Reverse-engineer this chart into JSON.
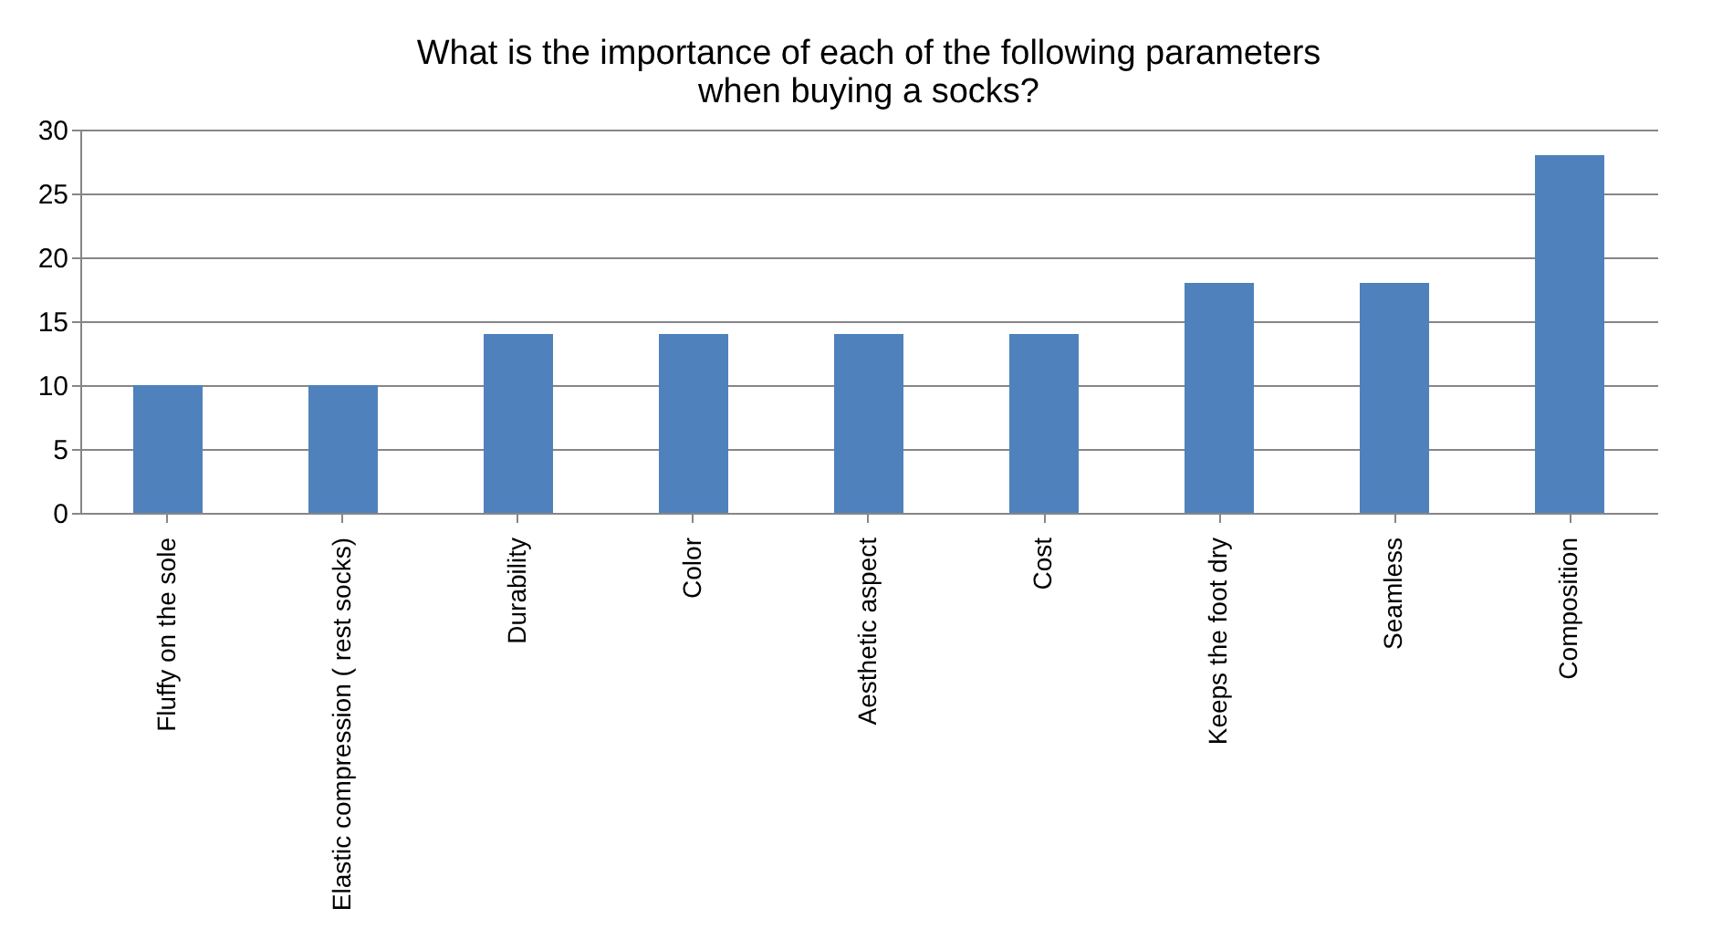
{
  "chart_data": {
    "type": "bar",
    "title": [
      "What is the importance of each of the following parameters",
      "when buying a socks?"
    ],
    "categories": [
      "Fluffy on the sole",
      "Elastic compression ( rest socks)",
      "Durability",
      "Color",
      "Aesthetic aspect",
      "Cost",
      "Keeps the foot dry",
      "Seamless",
      "Composition"
    ],
    "values": [
      10,
      10,
      14,
      14,
      14,
      14,
      18,
      18,
      28
    ],
    "color": "#4f81bd",
    "ylim": [
      0,
      30
    ],
    "yticks": [
      0,
      5,
      10,
      15,
      20,
      25,
      30
    ],
    "grid": "y"
  }
}
